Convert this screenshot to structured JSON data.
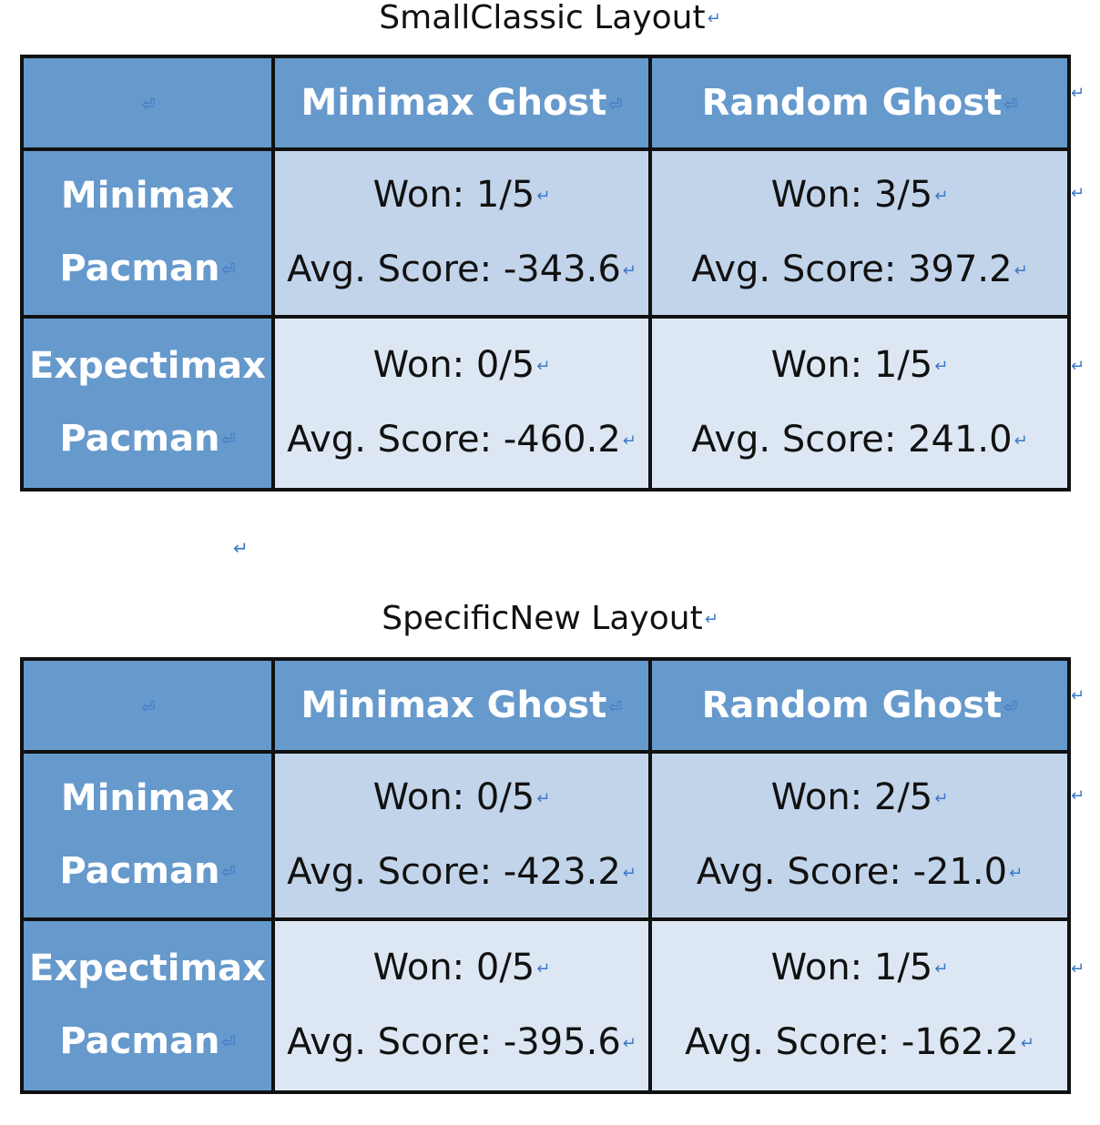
{
  "mark": "↵",
  "cell_mark": "⏎",
  "tables": [
    {
      "title": "SmallClassic Layout",
      "columns": [
        "",
        "Minimax Ghost",
        "Random Ghost"
      ],
      "rows": [
        {
          "label_1": "Minimax",
          "label_2": "Pacman",
          "cells": [
            {
              "won": "Won: 1/5",
              "avg": "Avg. Score: -343.6"
            },
            {
              "won": "Won: 3/5",
              "avg": "Avg. Score: 397.2"
            }
          ]
        },
        {
          "label_1": "Expectimax",
          "label_2": "Pacman",
          "cells": [
            {
              "won": "Won: 0/5",
              "avg": "Avg. Score: -460.2"
            },
            {
              "won": "Won: 1/5",
              "avg": "Avg. Score: 241.0"
            }
          ]
        }
      ]
    },
    {
      "title": "SpecificNew Layout",
      "columns": [
        "",
        "Minimax Ghost",
        "Random Ghost"
      ],
      "rows": [
        {
          "label_1": "Minimax",
          "label_2": "Pacman",
          "cells": [
            {
              "won": "Won: 0/5",
              "avg": "Avg. Score: -423.2"
            },
            {
              "won": "Won: 2/5",
              "avg": "Avg. Score: -21.0"
            }
          ]
        },
        {
          "label_1": "Expectimax",
          "label_2": "Pacman",
          "cells": [
            {
              "won": "Won: 0/5",
              "avg": "Avg. Score: -395.6"
            },
            {
              "won": "Won: 1/5",
              "avg": "Avg. Score: -162.2"
            }
          ]
        }
      ]
    }
  ],
  "colors": {
    "header_bg": "#6699cc",
    "row1_bg": "#c2d4ea",
    "row2_bg": "#dde7f3",
    "border": "#111111",
    "paragraph_mark": "#3a78c8"
  }
}
